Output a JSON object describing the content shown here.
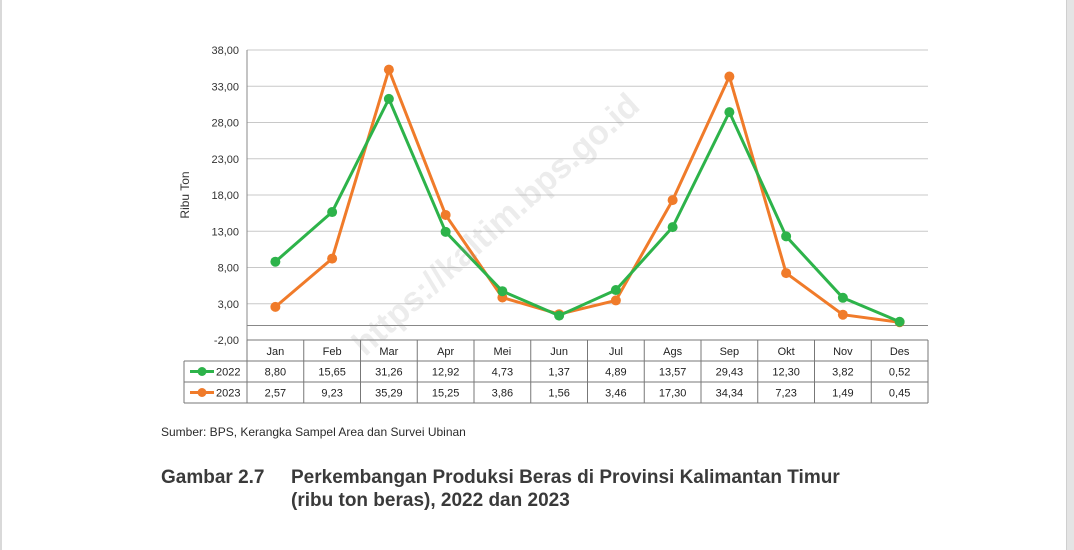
{
  "chart_data": {
    "type": "line",
    "categories": [
      "Jan",
      "Feb",
      "Mar",
      "Apr",
      "Mei",
      "Jun",
      "Jul",
      "Ags",
      "Sep",
      "Okt",
      "Nov",
      "Des"
    ],
    "series": [
      {
        "name": "2022",
        "color": "#2db34a",
        "values": [
          8.8,
          15.65,
          31.26,
          12.92,
          4.73,
          1.37,
          4.89,
          13.57,
          29.43,
          12.3,
          3.82,
          0.52
        ],
        "labels": [
          "8,80",
          "15,65",
          "31,26",
          "12,92",
          "4,73",
          "1,37",
          "4,89",
          "13,57",
          "29,43",
          "12,30",
          "3,82",
          "0,52"
        ]
      },
      {
        "name": "2023",
        "color": "#f07b2a",
        "values": [
          2.57,
          9.23,
          35.29,
          15.25,
          3.86,
          1.56,
          3.46,
          17.3,
          34.34,
          7.23,
          1.49,
          0.45
        ],
        "labels": [
          "2,57",
          "9,23",
          "35,29",
          "15,25",
          "3,86",
          "1,56",
          "3,46",
          "17,30",
          "34,34",
          "7,23",
          "1,49",
          "0,45"
        ]
      }
    ],
    "ylabel": "Ribu Ton",
    "ylim": [
      -2,
      38
    ],
    "yticks": [
      -2,
      3,
      8,
      13,
      18,
      23,
      28,
      33,
      38
    ],
    "ytick_labels": [
      "-2,00",
      "3,00",
      "8,00",
      "13,00",
      "18,00",
      "23,00",
      "28,00",
      "33,00",
      "38,00"
    ],
    "grid": true,
    "legend": "data-table-left"
  },
  "source": "Sumber: BPS, Kerangka Sampel Area dan Survei Ubinan",
  "caption": {
    "number": "Gambar 2.7",
    "title_line1": "Perkembangan Produksi Beras di Provinsi Kalimantan Timur",
    "title_line2": "(ribu ton beras), 2022 dan 2023"
  },
  "watermark": "https://kaltim.bps.go.id"
}
